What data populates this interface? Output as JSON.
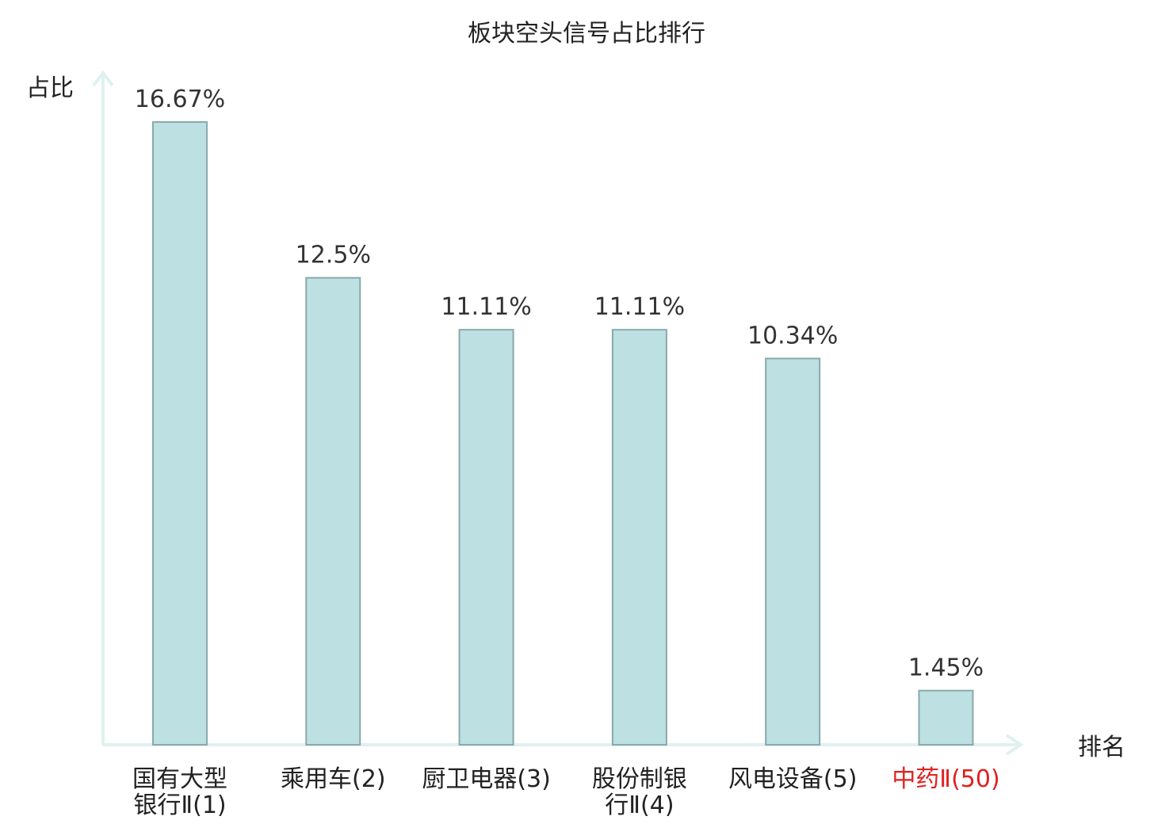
{
  "chart_data": {
    "type": "bar",
    "title": "板块空头信号占比排行",
    "ylabel": "占比",
    "xlabel": "排名",
    "categories": [
      {
        "lines": [
          "国有大型",
          "银行Ⅱ(1)"
        ],
        "highlight": false
      },
      {
        "lines": [
          "乘用车(2)"
        ],
        "highlight": false
      },
      {
        "lines": [
          "厨卫电器(3)"
        ],
        "highlight": false
      },
      {
        "lines": [
          "股份制银",
          "行Ⅱ(4)"
        ],
        "highlight": false
      },
      {
        "lines": [
          "风电设备(5)"
        ],
        "highlight": false
      },
      {
        "lines": [
          "中药Ⅱ(50)"
        ],
        "highlight": true
      }
    ],
    "values": [
      16.67,
      12.5,
      11.11,
      11.11,
      10.34,
      1.45
    ],
    "value_labels": [
      "16.67%",
      "12.5%",
      "11.11%",
      "11.11%",
      "10.34%",
      "1.45%"
    ],
    "ylim": [
      0,
      16.67
    ],
    "grid": false,
    "colors": {
      "bar_fill": "#bde0e2",
      "bar_stroke": "#8aa9ab",
      "axis": "#dff1ef",
      "highlight_text": "#e02020"
    }
  }
}
